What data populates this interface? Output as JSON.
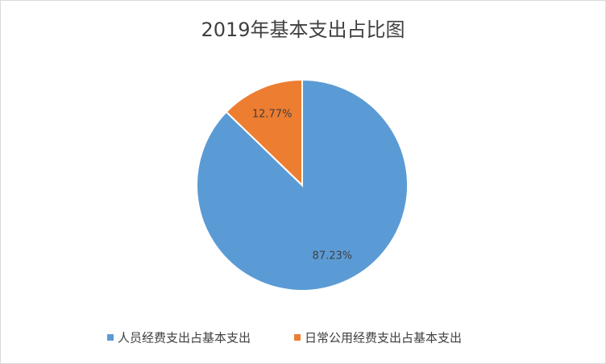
{
  "chart_data": {
    "type": "pie",
    "title": "2019年基本支出占比图",
    "categories": [
      "人员经费支出占基本支出",
      "日常公用经费支出占基本支出"
    ],
    "values": [
      87.23,
      12.77
    ],
    "value_labels": [
      "87.23%",
      "12.77%"
    ],
    "colors": [
      "#5b9bd5",
      "#ed7d31"
    ],
    "legend": "bottom"
  }
}
